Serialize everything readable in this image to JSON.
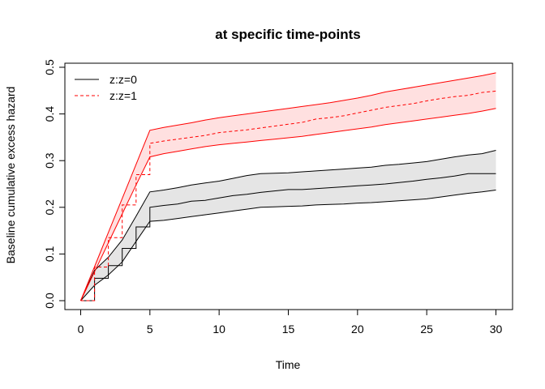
{
  "chart_data": {
    "type": "line",
    "title": "at specific time-points",
    "xlabel": "Time",
    "ylabel": "Baseline cumulative excess hazard",
    "xlim": [
      0,
      30
    ],
    "ylim": [
      0,
      0.5
    ],
    "x_ticks": [
      "0",
      "5",
      "10",
      "15",
      "20",
      "25",
      "30"
    ],
    "y_ticks": [
      "0.0",
      "0.1",
      "0.2",
      "0.3",
      "0.4",
      "0.5"
    ],
    "grid": false,
    "legend_position": "top-left",
    "series": [
      {
        "name": "z:z=0",
        "color": "#000000",
        "line_style": "solid",
        "band_fill": "#e5e5e5",
        "step": {
          "x": [
            0,
            1,
            1,
            2,
            2,
            3,
            3,
            4,
            4,
            5,
            5,
            6,
            7,
            8,
            9,
            10,
            11,
            12,
            13,
            14,
            15,
            16,
            17,
            18,
            19,
            20,
            21,
            22,
            23,
            24,
            25,
            26,
            27,
            28,
            29,
            30
          ],
          "y": [
            0,
            0,
            0.048,
            0.048,
            0.075,
            0.075,
            0.112,
            0.112,
            0.158,
            0.158,
            0.2,
            0.204,
            0.207,
            0.213,
            0.215,
            0.22,
            0.225,
            0.228,
            0.232,
            0.235,
            0.238,
            0.238,
            0.24,
            0.242,
            0.244,
            0.246,
            0.248,
            0.25,
            0.253,
            0.256,
            0.26,
            0.263,
            0.267,
            0.272,
            0.272,
            0.272
          ]
        },
        "upper": {
          "x": [
            0,
            1,
            2,
            3,
            4,
            5,
            6,
            7,
            8,
            9,
            10,
            11,
            12,
            13,
            14,
            15,
            16,
            17,
            18,
            19,
            20,
            21,
            22,
            23,
            24,
            25,
            26,
            27,
            28,
            29,
            30
          ],
          "y": [
            0,
            0.065,
            0.093,
            0.13,
            0.181,
            0.233,
            0.237,
            0.242,
            0.248,
            0.252,
            0.256,
            0.262,
            0.268,
            0.272,
            0.273,
            0.274,
            0.276,
            0.278,
            0.28,
            0.282,
            0.284,
            0.286,
            0.29,
            0.292,
            0.295,
            0.298,
            0.303,
            0.308,
            0.312,
            0.315,
            0.322
          ]
        },
        "lower": {
          "x": [
            0,
            1,
            2,
            3,
            4,
            5,
            6,
            7,
            8,
            9,
            10,
            11,
            12,
            13,
            14,
            15,
            16,
            17,
            18,
            19,
            20,
            21,
            22,
            23,
            24,
            25,
            26,
            27,
            28,
            29,
            30
          ],
          "y": [
            0,
            0.033,
            0.055,
            0.083,
            0.127,
            0.17,
            0.172,
            0.176,
            0.18,
            0.184,
            0.188,
            0.192,
            0.196,
            0.2,
            0.201,
            0.202,
            0.203,
            0.205,
            0.206,
            0.207,
            0.209,
            0.21,
            0.212,
            0.214,
            0.216,
            0.218,
            0.222,
            0.226,
            0.23,
            0.233,
            0.237
          ]
        }
      },
      {
        "name": "z:z=1",
        "color": "#ff0000",
        "line_style": "dashed",
        "band_fill": "#ffe0e0",
        "step": {
          "x": [
            0,
            1,
            1,
            2,
            2,
            3,
            3,
            4,
            4,
            5,
            5,
            6,
            7,
            8,
            9,
            10,
            11,
            12,
            13,
            14,
            15,
            16,
            17,
            18,
            19,
            20,
            21,
            22,
            23,
            24,
            25,
            26,
            27,
            28,
            29,
            30
          ],
          "y": [
            0,
            0,
            0.072,
            0.072,
            0.135,
            0.135,
            0.205,
            0.205,
            0.27,
            0.27,
            0.337,
            0.342,
            0.346,
            0.35,
            0.354,
            0.36,
            0.363,
            0.366,
            0.37,
            0.374,
            0.378,
            0.382,
            0.389,
            0.392,
            0.396,
            0.402,
            0.408,
            0.414,
            0.418,
            0.422,
            0.428,
            0.433,
            0.437,
            0.44,
            0.446,
            0.449
          ]
        },
        "upper": {
          "x": [
            0,
            1,
            2,
            3,
            4,
            5,
            6,
            7,
            8,
            9,
            10,
            11,
            12,
            13,
            14,
            15,
            16,
            17,
            18,
            19,
            20,
            21,
            22,
            23,
            24,
            25,
            26,
            27,
            28,
            29,
            30
          ],
          "y": [
            0,
            0.073,
            0.146,
            0.219,
            0.292,
            0.365,
            0.371,
            0.376,
            0.381,
            0.387,
            0.392,
            0.396,
            0.4,
            0.404,
            0.408,
            0.412,
            0.416,
            0.42,
            0.424,
            0.429,
            0.434,
            0.44,
            0.447,
            0.452,
            0.457,
            0.462,
            0.467,
            0.472,
            0.477,
            0.482,
            0.488
          ]
        },
        "lower": {
          "x": [
            0,
            1,
            2,
            3,
            4,
            5,
            6,
            7,
            8,
            9,
            10,
            11,
            12,
            13,
            14,
            15,
            16,
            17,
            18,
            19,
            20,
            21,
            22,
            23,
            24,
            25,
            26,
            27,
            28,
            29,
            30
          ],
          "y": [
            0,
            0.062,
            0.124,
            0.186,
            0.248,
            0.308,
            0.315,
            0.32,
            0.325,
            0.33,
            0.334,
            0.337,
            0.34,
            0.343,
            0.346,
            0.349,
            0.352,
            0.356,
            0.36,
            0.364,
            0.368,
            0.372,
            0.377,
            0.381,
            0.385,
            0.389,
            0.393,
            0.397,
            0.401,
            0.406,
            0.412
          ]
        }
      }
    ]
  }
}
